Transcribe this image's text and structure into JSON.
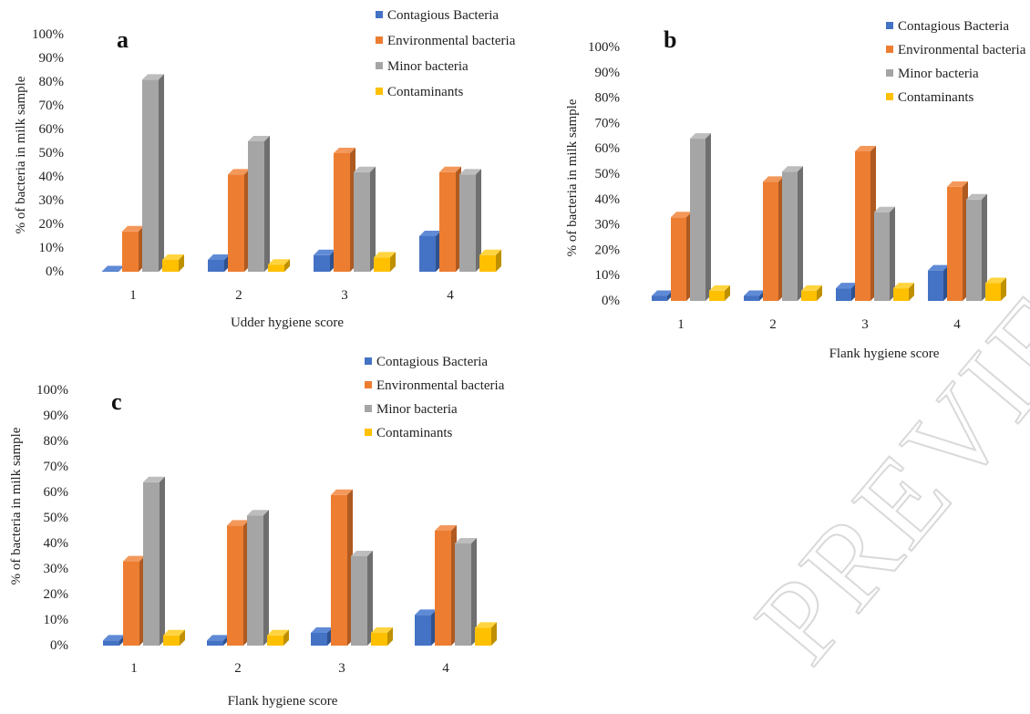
{
  "colors": {
    "series": [
      "#4472c4",
      "#ed7d31",
      "#a5a5a5",
      "#ffc000"
    ],
    "series_top": [
      "#5f8ad6",
      "#f3985a",
      "#bdbdbd",
      "#ffd43f"
    ],
    "series_side": [
      "#2f528f",
      "#ae5a21",
      "#6f6f6f",
      "#bf9000"
    ]
  },
  "watermark": {
    "text": "PREVIEW"
  },
  "chart_data": [
    {
      "panel": "a",
      "panel_label": "a",
      "type": "bar",
      "categories": [
        "1",
        "2",
        "3",
        "4"
      ],
      "xlabel": "Udder hygiene score",
      "ylabel": "% of bacteria in milk sample",
      "ylim": [
        0,
        100
      ],
      "yticks": [
        "0%",
        "10%",
        "20%",
        "30%",
        "40%",
        "50%",
        "60%",
        "70%",
        "80%",
        "90%",
        "100%"
      ],
      "legend_position": "top-right",
      "series": [
        {
          "name": "Contagious Bacteria",
          "values": [
            0,
            5,
            7,
            15
          ]
        },
        {
          "name": "Environmental bacteria",
          "values": [
            17,
            41,
            50,
            42
          ]
        },
        {
          "name": "Minor bacteria",
          "values": [
            81,
            55,
            42,
            41
          ]
        },
        {
          "name": "Contaminants",
          "values": [
            5,
            3,
            6,
            7
          ]
        }
      ]
    },
    {
      "panel": "b",
      "panel_label": "b",
      "type": "bar",
      "categories": [
        "1",
        "2",
        "3",
        "4"
      ],
      "xlabel": "Flank hygiene score",
      "ylabel": "% of bacteria in milk sample",
      "ylim": [
        0,
        100
      ],
      "yticks": [
        "0%",
        "10%",
        "20%",
        "30%",
        "40%",
        "50%",
        "60%",
        "70%",
        "80%",
        "90%",
        "100%"
      ],
      "legend_position": "top-right",
      "series": [
        {
          "name": "Contagious Bacteria",
          "values": [
            2,
            2,
            5,
            12
          ]
        },
        {
          "name": "Environmental bacteria",
          "values": [
            33,
            47,
            59,
            45
          ]
        },
        {
          "name": "Minor bacteria",
          "values": [
            64,
            51,
            35,
            40
          ]
        },
        {
          "name": "Contaminants",
          "values": [
            4,
            4,
            5,
            7
          ]
        }
      ]
    },
    {
      "panel": "c",
      "panel_label": "c",
      "type": "bar",
      "categories": [
        "1",
        "2",
        "3",
        "4"
      ],
      "xlabel": "Flank hygiene score",
      "ylabel": "% of bacteria in milk sample",
      "ylim": [
        0,
        100
      ],
      "yticks": [
        "0%",
        "10%",
        "20%",
        "30%",
        "40%",
        "50%",
        "60%",
        "70%",
        "80%",
        "90%",
        "100%"
      ],
      "legend_position": "top-right",
      "series": [
        {
          "name": "Contagious Bacteria",
          "values": [
            2,
            2,
            5,
            12
          ]
        },
        {
          "name": "Environmental bacteria",
          "values": [
            33,
            47,
            59,
            45
          ]
        },
        {
          "name": "Minor bacteria",
          "values": [
            64,
            51,
            35,
            40
          ]
        },
        {
          "name": "Contaminants",
          "values": [
            4,
            4,
            5,
            7
          ]
        }
      ]
    }
  ]
}
